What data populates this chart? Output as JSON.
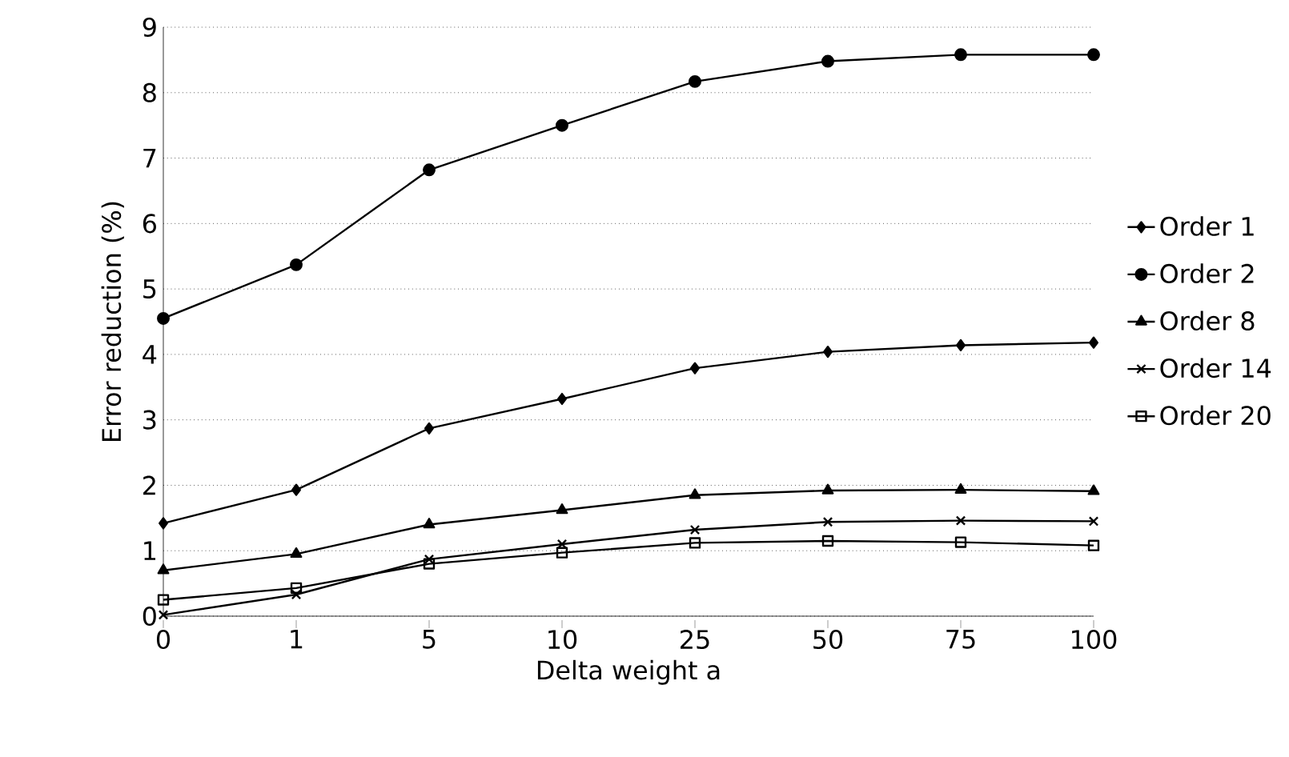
{
  "chart_data": {
    "type": "line",
    "xlabel": "Delta weight a",
    "ylabel": "Error reduction (%)",
    "categories": [
      "0",
      "1",
      "5",
      "10",
      "25",
      "50",
      "75",
      "100"
    ],
    "ylim": [
      0,
      9
    ],
    "yticks": [
      0,
      1,
      2,
      3,
      4,
      5,
      6,
      7,
      8,
      9
    ],
    "grid": "y",
    "legend": "right",
    "line_style": "solid",
    "series": [
      {
        "name": "Order 1",
        "color": "#000000",
        "marker": "diamond",
        "values": [
          1.42,
          1.93,
          2.87,
          3.32,
          3.79,
          4.04,
          4.14,
          4.18
        ]
      },
      {
        "name": "Order 2",
        "color": "#000000",
        "marker": "circle",
        "values": [
          4.55,
          5.37,
          6.82,
          7.5,
          8.17,
          8.48,
          8.58,
          8.58
        ]
      },
      {
        "name": "Order 8",
        "color": "#000000",
        "marker": "triangle",
        "values": [
          0.7,
          0.95,
          1.4,
          1.62,
          1.85,
          1.92,
          1.93,
          1.91
        ]
      },
      {
        "name": "Order 14",
        "color": "#000000",
        "marker": "cross",
        "values": [
          0.02,
          0.33,
          0.87,
          1.1,
          1.32,
          1.44,
          1.46,
          1.45
        ]
      },
      {
        "name": "Order 20",
        "color": "#000000",
        "marker": "square",
        "values": [
          0.25,
          0.43,
          0.8,
          0.97,
          1.12,
          1.15,
          1.13,
          1.08
        ]
      }
    ]
  }
}
